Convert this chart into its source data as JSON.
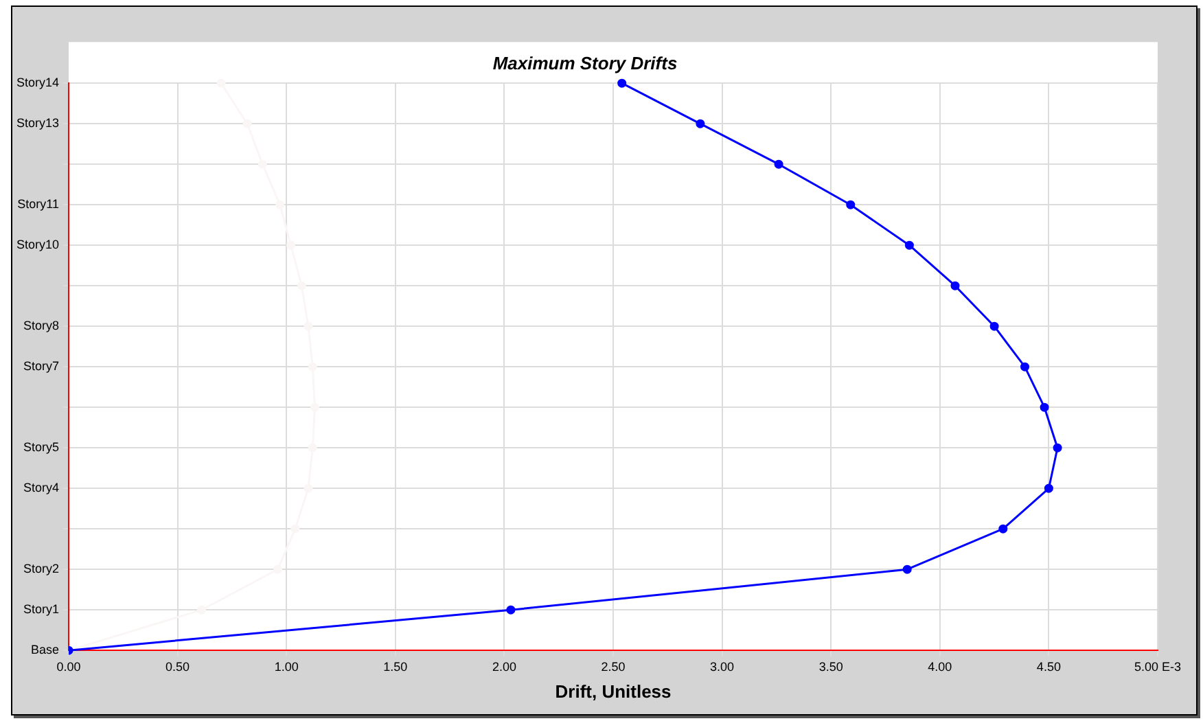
{
  "chart_data": {
    "type": "line",
    "orientation": "horizontal",
    "title": "Maximum Story Drifts",
    "xlabel": "Drift, Unitless",
    "categories": [
      "Story14",
      "Story13",
      null,
      "Story11",
      "Story10",
      null,
      "Story8",
      "Story7",
      null,
      "Story5",
      "Story4",
      null,
      "Story2",
      "Story1",
      "Base"
    ],
    "xlim": [
      0,
      5
    ],
    "xticks": [
      {
        "value": 0,
        "label": "0.00"
      },
      {
        "value": 0.5,
        "label": "0.50"
      },
      {
        "value": 1,
        "label": "1.00"
      },
      {
        "value": 1.5,
        "label": "1.50"
      },
      {
        "value": 2,
        "label": "2.00"
      },
      {
        "value": 2.5,
        "label": "2.50"
      },
      {
        "value": 3,
        "label": "3.00"
      },
      {
        "value": 3.5,
        "label": "3.50"
      },
      {
        "value": 4,
        "label": "4.00"
      },
      {
        "value": 4.5,
        "label": "4.50"
      },
      {
        "value": 5,
        "label": "5.00 E-3"
      }
    ],
    "grid": true,
    "legend": false,
    "marker": "circle",
    "line_style": "solid",
    "series": [
      {
        "color": "#0000ff",
        "values": [
          2.54,
          2.9,
          3.26,
          3.59,
          3.86,
          4.07,
          4.25,
          4.39,
          4.48,
          4.54,
          4.5,
          4.29,
          3.85,
          2.03,
          0
        ]
      },
      {
        "color": "#fbf6f6",
        "values": [
          0.7,
          0.82,
          0.89,
          0.97,
          1.02,
          1.07,
          1.1,
          1.12,
          1.13,
          1.12,
          1.1,
          1.04,
          0.96,
          0.61,
          0
        ]
      }
    ]
  }
}
